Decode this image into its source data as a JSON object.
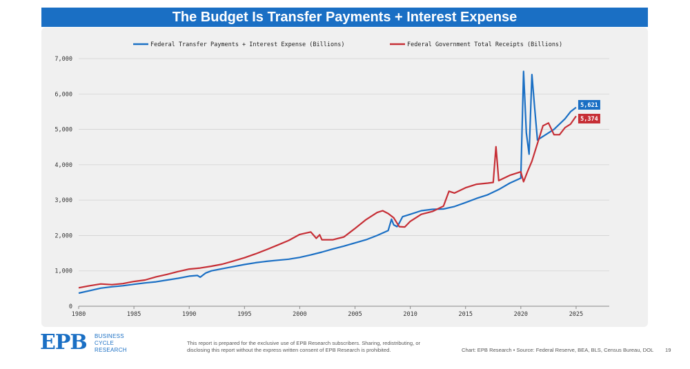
{
  "header": {
    "title": "The Budget Is Transfer Payments + Interest Expense"
  },
  "chart_data": {
    "type": "line",
    "title": "The Budget Is Transfer Payments + Interest Expense",
    "xlabel": "",
    "ylabel": "",
    "xlim": [
      1980,
      2028
    ],
    "ylim": [
      0,
      7000
    ],
    "x_ticks": [
      "1980",
      "1985",
      "1990",
      "1995",
      "2000",
      "2005",
      "2010",
      "2015",
      "2020",
      "2025"
    ],
    "y_ticks": [
      "0",
      "1,000",
      "2,000",
      "3,000",
      "4,000",
      "5,000",
      "6,000",
      "7,000"
    ],
    "grid": true,
    "legend_position": "top",
    "series": [
      {
        "name": "Federal Transfer Payments + Interest Expense (Billions)",
        "color": "#1a6fc4",
        "end_label": "5,621",
        "points": [
          [
            1980,
            370
          ],
          [
            1981,
            440
          ],
          [
            1982,
            510
          ],
          [
            1983,
            550
          ],
          [
            1984,
            580
          ],
          [
            1985,
            620
          ],
          [
            1986,
            660
          ],
          [
            1987,
            690
          ],
          [
            1988,
            740
          ],
          [
            1989,
            790
          ],
          [
            1990,
            850
          ],
          [
            1990.75,
            870
          ],
          [
            1991,
            820
          ],
          [
            1991.5,
            940
          ],
          [
            1992,
            1000
          ],
          [
            1993,
            1060
          ],
          [
            1994,
            1120
          ],
          [
            1995,
            1180
          ],
          [
            1996,
            1230
          ],
          [
            1997,
            1270
          ],
          [
            1998,
            1300
          ],
          [
            1999,
            1330
          ],
          [
            2000,
            1380
          ],
          [
            2001,
            1450
          ],
          [
            2002,
            1530
          ],
          [
            2003,
            1620
          ],
          [
            2004,
            1700
          ],
          [
            2005,
            1790
          ],
          [
            2006,
            1880
          ],
          [
            2007,
            2000
          ],
          [
            2008,
            2140
          ],
          [
            2008.3,
            2460
          ],
          [
            2008.5,
            2300
          ],
          [
            2008.8,
            2250
          ],
          [
            2009,
            2350
          ],
          [
            2009.3,
            2530
          ],
          [
            2010,
            2600
          ],
          [
            2011,
            2700
          ],
          [
            2012,
            2740
          ],
          [
            2013,
            2750
          ],
          [
            2014,
            2820
          ],
          [
            2015,
            2930
          ],
          [
            2016,
            3050
          ],
          [
            2017,
            3150
          ],
          [
            2018,
            3300
          ],
          [
            2019,
            3480
          ],
          [
            2020,
            3620
          ],
          [
            2020.25,
            6640
          ],
          [
            2020.5,
            4900
          ],
          [
            2020.75,
            4300
          ],
          [
            2021,
            6550
          ],
          [
            2021.25,
            5600
          ],
          [
            2021.5,
            4700
          ],
          [
            2022,
            4800
          ],
          [
            2023,
            5000
          ],
          [
            2024,
            5300
          ],
          [
            2024.5,
            5500
          ],
          [
            2025,
            5621
          ]
        ]
      },
      {
        "name": "Federal Government Total Receipts (Billions)",
        "color": "#c62e35",
        "end_label": "5,374",
        "points": [
          [
            1980,
            520
          ],
          [
            1981,
            580
          ],
          [
            1982,
            630
          ],
          [
            1983,
            610
          ],
          [
            1984,
            640
          ],
          [
            1985,
            700
          ],
          [
            1986,
            740
          ],
          [
            1987,
            830
          ],
          [
            1988,
            900
          ],
          [
            1989,
            980
          ],
          [
            1990,
            1050
          ],
          [
            1991,
            1080
          ],
          [
            1992,
            1130
          ],
          [
            1993,
            1190
          ],
          [
            1994,
            1280
          ],
          [
            1995,
            1370
          ],
          [
            1996,
            1480
          ],
          [
            1997,
            1600
          ],
          [
            1998,
            1730
          ],
          [
            1999,
            1860
          ],
          [
            2000,
            2030
          ],
          [
            2001,
            2100
          ],
          [
            2001.5,
            1920
          ],
          [
            2001.8,
            2020
          ],
          [
            2002,
            1880
          ],
          [
            2003,
            1880
          ],
          [
            2004,
            1960
          ],
          [
            2005,
            2200
          ],
          [
            2006,
            2450
          ],
          [
            2007,
            2650
          ],
          [
            2007.5,
            2700
          ],
          [
            2008,
            2620
          ],
          [
            2008.5,
            2500
          ],
          [
            2009,
            2250
          ],
          [
            2009.5,
            2240
          ],
          [
            2010,
            2400
          ],
          [
            2011,
            2600
          ],
          [
            2012,
            2680
          ],
          [
            2013,
            2830
          ],
          [
            2013.5,
            3250
          ],
          [
            2014,
            3200
          ],
          [
            2015,
            3350
          ],
          [
            2016,
            3450
          ],
          [
            2017,
            3480
          ],
          [
            2017.5,
            3500
          ],
          [
            2017.75,
            4510
          ],
          [
            2018,
            3550
          ],
          [
            2019,
            3700
          ],
          [
            2020,
            3800
          ],
          [
            2020.25,
            3520
          ],
          [
            2020.6,
            3800
          ],
          [
            2021,
            4100
          ],
          [
            2021.5,
            4600
          ],
          [
            2022,
            5100
          ],
          [
            2022.5,
            5180
          ],
          [
            2023,
            4850
          ],
          [
            2023.5,
            4850
          ],
          [
            2024,
            5050
          ],
          [
            2024.5,
            5150
          ],
          [
            2025,
            5374
          ]
        ]
      }
    ]
  },
  "footer": {
    "logo_text": "EPB",
    "logo_lines": [
      "BUSINESS",
      "CYCLE",
      "RESEARCH"
    ],
    "disclaimer": "This report is prepared for the exclusive use of EPB Research subscribers. Sharing, redistributing, or disclosing this report without the express written consent of EPB Research is prohibited.",
    "source": "Chart: EPB Research  •  Source: Federal Reserve, BEA, BLS, Census Bureau, DOL",
    "page": "19"
  }
}
